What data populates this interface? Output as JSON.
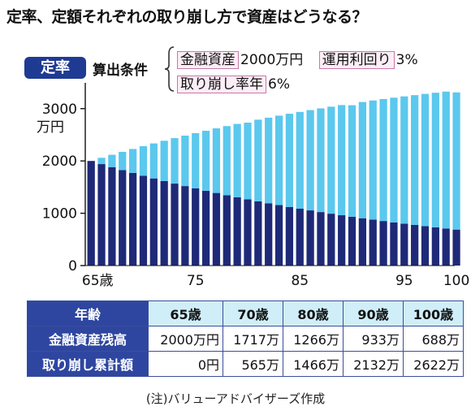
{
  "title": "定率、定額それぞれの取り崩し方で資産はどうなる？",
  "badge": "定率",
  "conditions": {
    "label": "算出条件",
    "asset_label": "金融資産",
    "asset_value": "2000万円",
    "yield_label": "運用利回り",
    "yield_value": "3%",
    "rate_label": "取り崩し率年",
    "rate_value": "6%"
  },
  "chart_data": {
    "type": "bar",
    "stacked": true,
    "x": [
      65,
      66,
      67,
      68,
      69,
      70,
      71,
      72,
      73,
      74,
      75,
      76,
      77,
      78,
      79,
      80,
      81,
      82,
      83,
      84,
      85,
      86,
      87,
      88,
      89,
      90,
      91,
      92,
      93,
      94,
      95,
      96,
      97,
      98,
      99,
      100
    ],
    "x_tick_labels": [
      "65歳",
      "75",
      "85",
      "95",
      "100"
    ],
    "y_ticks": [
      0,
      1000,
      2000,
      3000
    ],
    "ylabel_unit": "万円",
    "ylim": [
      0,
      3400
    ],
    "grid": false,
    "colors": {
      "balance": "#1e2a78",
      "withdrawn": "#5bc8ee"
    },
    "series": [
      {
        "key": "balance",
        "values": [
          2000,
          1940,
          1882,
          1825,
          1771,
          1717,
          1666,
          1616,
          1567,
          1520,
          1475,
          1430,
          1388,
          1346,
          1305,
          1266,
          1228,
          1191,
          1156,
          1121,
          1087,
          1055,
          1023,
          992,
          962,
          933,
          905,
          878,
          852,
          826,
          801,
          777,
          754,
          731,
          709,
          688
        ]
      },
      {
        "key": "withdrawn",
        "values": [
          0,
          120,
          236,
          349,
          458,
          565,
          669,
          770,
          869,
          964,
          1057,
          1147,
          1235,
          1320,
          1403,
          1466,
          1561,
          1636,
          1710,
          1781,
          1850,
          1917,
          1982,
          2045,
          2106,
          2132,
          2222,
          2278,
          2331,
          2383,
          2433,
          2481,
          2528,
          2573,
          2617,
          2622
        ]
      }
    ]
  },
  "table": {
    "corner": "年齢",
    "headers": [
      "65歳",
      "70歳",
      "80歳",
      "90歳",
      "100歳"
    ],
    "rows": [
      {
        "label": "金融資産残高",
        "cells": [
          "2000万円",
          "1717万",
          "1266万",
          "933万",
          "688万"
        ]
      },
      {
        "label": "取り崩し累計額",
        "cells": [
          "0円",
          "565万",
          "1466万",
          "2132万",
          "2622万"
        ]
      }
    ]
  },
  "note": "(注)バリューアドバイザーズ作成"
}
